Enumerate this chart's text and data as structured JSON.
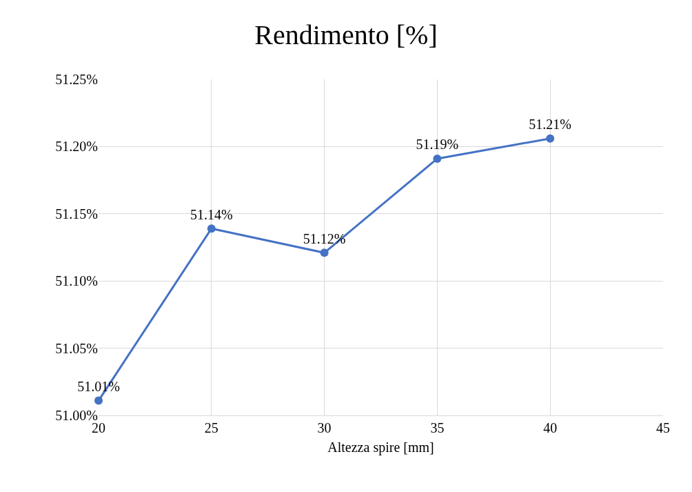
{
  "chart_data": {
    "type": "line",
    "title": "Rendimento [%]",
    "xlabel": "Altezza spire [mm]",
    "x": [
      20,
      25,
      30,
      35,
      40
    ],
    "series": [
      {
        "color": "#4472c4",
        "values": [
          51.011,
          51.139,
          51.121,
          51.191,
          51.206
        ],
        "value_labels": [
          "51.01%",
          "51.14%",
          "51.12%",
          "51.19%",
          "51.21%"
        ]
      }
    ],
    "xlim": [
      20,
      45
    ],
    "xticks": [
      20,
      25,
      30,
      35,
      40,
      45
    ],
    "ylim": [
      51.0,
      51.25
    ],
    "yticks": [
      {
        "value": 51.0,
        "label": "51.00%"
      },
      {
        "value": 51.05,
        "label": "51.05%"
      },
      {
        "value": 51.1,
        "label": "51.10%"
      },
      {
        "value": 51.15,
        "label": "51.15%"
      },
      {
        "value": 51.2,
        "label": "51.20%"
      },
      {
        "value": 51.25,
        "label": "51.25%"
      }
    ],
    "grid": true,
    "marker": "circle",
    "line_style": "solid"
  }
}
